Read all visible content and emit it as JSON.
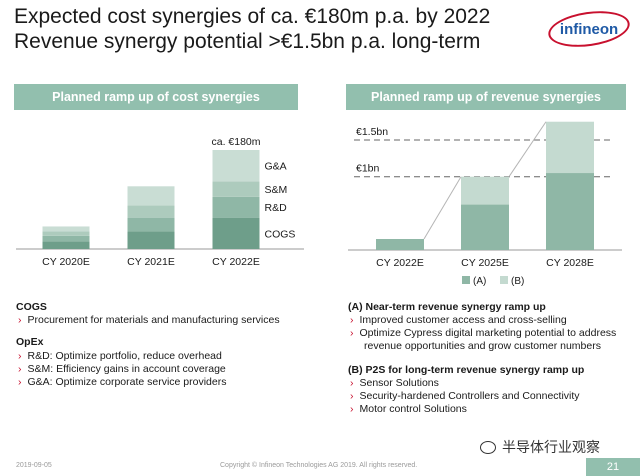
{
  "title": {
    "line1": "Expected cost synergies of ca. €180m p.a. by 2022",
    "line2": "Revenue synergy potential >€1.5bn p.a. long-term"
  },
  "logo": "infineon",
  "left_panel": {
    "header": "Planned ramp up of cost synergies",
    "chart_data": {
      "type": "bar",
      "stacked": true,
      "categories": [
        "CY 2020E",
        "CY 2021E",
        "CY 2022E"
      ],
      "series": [
        {
          "name": "COGS",
          "values": [
            14,
            32,
            57
          ]
        },
        {
          "name": "R&D",
          "values": [
            10,
            25,
            38
          ]
        },
        {
          "name": "S&M",
          "values": [
            8,
            22,
            28
          ]
        },
        {
          "name": "G&A",
          "values": [
            9,
            35,
            57
          ]
        }
      ],
      "annotation": "ca. €180m",
      "colors": [
        "#6e9e8a",
        "#8fb7a6",
        "#adcbbd",
        "#c9ddd4"
      ]
    }
  },
  "right_panel": {
    "header": "Planned ramp up of revenue synergies",
    "chart_data": {
      "type": "bar",
      "stacked": true,
      "categories": [
        "CY 2022E",
        "CY 2025E",
        "CY 2028E"
      ],
      "series": [
        {
          "name": "(A)",
          "values": [
            0.15,
            0.62,
            1.05
          ]
        },
        {
          "name": "(B)",
          "values": [
            0.0,
            0.38,
            0.7
          ]
        }
      ],
      "reference_lines": [
        {
          "label": "€1.5bn",
          "value": 1.5
        },
        {
          "label": "€1bn",
          "value": 1.0
        }
      ],
      "colors": [
        "#8fb7a6",
        "#c4dad0"
      ]
    }
  },
  "left_text": {
    "cogs_title": "COGS",
    "cogs_items": [
      "Procurement for materials and manufacturing services"
    ],
    "opex_title": "OpEx",
    "opex_items": [
      "R&D: Optimize portfolio, reduce overhead",
      "S&M: Efficiency gains in account coverage",
      "G&A: Optimize corporate service providers"
    ]
  },
  "right_text": {
    "a_title": "(A) Near-term revenue synergy ramp up",
    "a_items": [
      "Improved customer access and cross-selling",
      "Optimize Cypress digital marketing potential to address revenue opportunities and grow customer numbers"
    ],
    "b_title": "(B) P2S for long-term revenue synergy ramp up",
    "b_items": [
      "Sensor Solutions",
      "Security-hardened Controllers and Connectivity",
      "Motor control Solutions"
    ]
  },
  "footer": {
    "date": "2019-09-05",
    "copyright": "Copyright © Infineon Technologies AG 2019. All rights reserved.",
    "page": "21"
  },
  "watermark": "半导体行业观察"
}
